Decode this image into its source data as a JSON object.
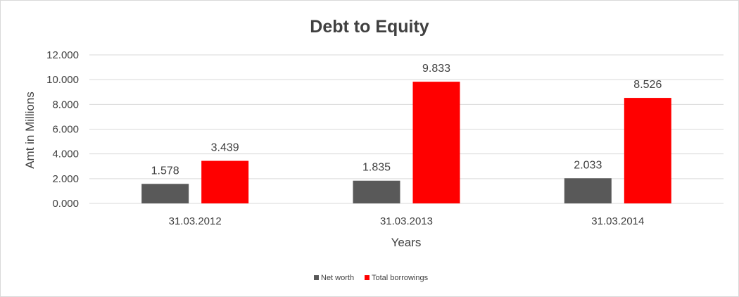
{
  "chart_data": {
    "type": "bar",
    "title": "Debt to Equity",
    "xlabel": "Years",
    "ylabel": "Amt in Millions",
    "categories": [
      "31.03.2012",
      "31.03.2013",
      "31.03.2014"
    ],
    "series": [
      {
        "name": "Net worth",
        "values": [
          1.578,
          1.835,
          2.033
        ],
        "color": "#595959"
      },
      {
        "name": "Total borrowings",
        "values": [
          3.439,
          9.833,
          8.526
        ],
        "color": "#ff0000"
      }
    ],
    "ylim": [
      0,
      12
    ],
    "yticks": [
      "0.000",
      "2.000",
      "4.000",
      "6.000",
      "8.000",
      "10.000",
      "12.000"
    ],
    "data_labels": [
      [
        "1.578",
        "1.835",
        "2.033"
      ],
      [
        "3.439",
        "9.833",
        "8.526"
      ]
    ],
    "grid": true,
    "legend_position": "bottom"
  }
}
